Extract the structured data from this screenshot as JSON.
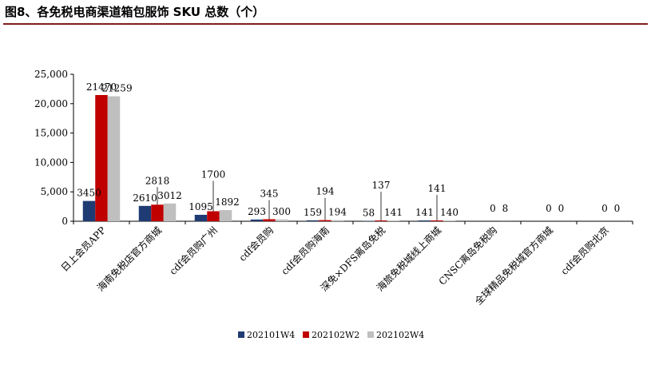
{
  "figure_title": "图8、各免税电商渠道箱包服饰 SKU 总数（个）",
  "colors": {
    "s0": "#1f3b73",
    "s1": "#c00000",
    "s2": "#bfbfbf",
    "title_rule": "#7f1d1d"
  },
  "chart_data": {
    "type": "bar",
    "title": "",
    "xlabel": "",
    "ylabel": "",
    "ylim": [
      0,
      25000
    ],
    "yticks": [
      "0",
      "5,000",
      "10,000",
      "15,000",
      "20,000",
      "25,000"
    ],
    "legend_position": "bottom",
    "grid": false,
    "categories": [
      "日上会员APP",
      "海南免税店官方商城",
      "cdf会员购广州",
      "cdf会员购",
      "cdf会员购海南",
      "深免×DFS离岛免税",
      "海旅免税城线上商城",
      "CNSC离岛免税购",
      "全球精品免税城官方商城",
      "cdf会员购北京"
    ],
    "series": [
      {
        "name": "202101W4",
        "values": [
          3450,
          2610,
          1095,
          293,
          159,
          58,
          141,
          null,
          null,
          null
        ]
      },
      {
        "name": "202102W2",
        "values": [
          21470,
          2818,
          1700,
          345,
          194,
          137,
          141,
          0,
          0,
          0
        ]
      },
      {
        "name": "202102W4",
        "values": [
          21259,
          3012,
          1892,
          300,
          194,
          141,
          140,
          8,
          0,
          0
        ]
      }
    ],
    "data_labels": [
      [
        "3450",
        "2610",
        "1095",
        "293",
        "159",
        "58",
        "141",
        "",
        "",
        ""
      ],
      [
        "21470",
        "2818",
        "1700",
        "345",
        "194",
        "137",
        "141",
        "0",
        "0",
        "0"
      ],
      [
        "21259",
        "3012",
        "1892",
        "300",
        "194",
        "141",
        "140",
        "8",
        "0",
        "0"
      ]
    ]
  }
}
